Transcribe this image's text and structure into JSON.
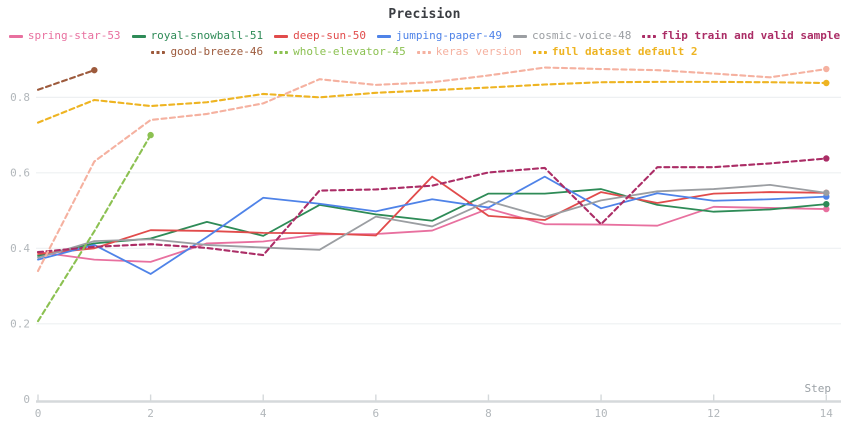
{
  "chart_data": {
    "type": "line",
    "title": "Precision",
    "xlabel": "Step",
    "xlim": [
      0,
      14
    ],
    "ylim": [
      0,
      0.92
    ],
    "xticks": [
      0,
      2,
      4,
      6,
      8,
      10,
      12,
      14
    ],
    "yticks": [
      0,
      0.2,
      0.4,
      0.6,
      0.8
    ],
    "grid": true,
    "legend_position": "top",
    "series": [
      {
        "name": "spring-star-53",
        "color": "#e8709f",
        "dash": false,
        "bold": false,
        "legend_row": 0,
        "x": [
          0,
          1,
          2,
          3,
          4,
          5,
          6,
          7,
          8,
          9,
          10,
          11,
          12,
          13,
          14
        ],
        "values": [
          0.39,
          0.37,
          0.364,
          0.413,
          0.418,
          0.437,
          0.438,
          0.447,
          0.505,
          0.464,
          0.463,
          0.46,
          0.51,
          0.507,
          0.504
        ]
      },
      {
        "name": "royal-snowball-51",
        "color": "#2e8b57",
        "dash": false,
        "bold": false,
        "legend_row": 0,
        "x": [
          0,
          1,
          2,
          3,
          4,
          5,
          6,
          7,
          8,
          9,
          10,
          11,
          12,
          13,
          14
        ],
        "values": [
          0.38,
          0.413,
          0.426,
          0.47,
          0.433,
          0.515,
          0.49,
          0.473,
          0.545,
          0.545,
          0.557,
          0.515,
          0.497,
          0.503,
          0.517
        ]
      },
      {
        "name": "deep-sun-50",
        "color": "#e14b4b",
        "dash": false,
        "bold": false,
        "legend_row": 0,
        "x": [
          0,
          1,
          2,
          3,
          4,
          5,
          6,
          7,
          8,
          9,
          10,
          11,
          12,
          13,
          14
        ],
        "values": [
          0.385,
          0.4,
          0.448,
          0.446,
          0.441,
          0.44,
          0.434,
          0.59,
          0.486,
          0.475,
          0.549,
          0.52,
          0.545,
          0.549,
          0.547
        ]
      },
      {
        "name": "jumping-paper-49",
        "color": "#4f83e8",
        "dash": false,
        "bold": false,
        "legend_row": 0,
        "x": [
          0,
          1,
          2,
          3,
          4,
          5,
          6,
          7,
          8,
          9,
          10,
          11,
          12,
          13,
          14
        ],
        "values": [
          0.37,
          0.409,
          0.332,
          0.43,
          0.534,
          0.518,
          0.498,
          0.53,
          0.508,
          0.59,
          0.506,
          0.546,
          0.526,
          0.53,
          0.537
        ]
      },
      {
        "name": "cosmic-voice-48",
        "color": "#9b9ea2",
        "dash": false,
        "bold": false,
        "legend_row": 0,
        "x": [
          0,
          1,
          2,
          3,
          4,
          5,
          6,
          7,
          8,
          9,
          10,
          11,
          12,
          13,
          14
        ],
        "values": [
          0.375,
          0.419,
          0.424,
          0.409,
          0.402,
          0.396,
          0.484,
          0.458,
          0.525,
          0.483,
          0.527,
          0.551,
          0.557,
          0.568,
          0.547
        ]
      },
      {
        "name": "flip train and valid sample",
        "color": "#ab2d66",
        "dash": true,
        "bold": true,
        "legend_row": 0,
        "x": [
          0,
          1,
          2,
          3,
          4,
          5,
          6,
          7,
          8,
          9,
          10,
          11,
          12,
          13,
          14
        ],
        "values": [
          0.39,
          0.404,
          0.411,
          0.401,
          0.382,
          0.553,
          0.556,
          0.566,
          0.601,
          0.613,
          0.464,
          0.615,
          0.615,
          0.625,
          0.638
        ]
      },
      {
        "name": "good-breeze-46",
        "color": "#9d5a3c",
        "dash": true,
        "bold": false,
        "legend_row": 1,
        "x": [
          0,
          1
        ],
        "values": [
          0.82,
          0.872
        ]
      },
      {
        "name": "whole-elevator-45",
        "color": "#8cc152",
        "dash": true,
        "bold": false,
        "legend_row": 1,
        "x": [
          0,
          1,
          2
        ],
        "values": [
          0.207,
          0.445,
          0.7
        ]
      },
      {
        "name": "keras version",
        "color": "#f5b1a0",
        "dash": true,
        "bold": false,
        "legend_row": 1,
        "x": [
          0,
          1,
          2,
          3,
          4,
          5,
          6,
          7,
          8,
          9,
          10,
          11,
          12,
          13,
          14
        ],
        "values": [
          0.34,
          0.63,
          0.74,
          0.756,
          0.784,
          0.848,
          0.833,
          0.84,
          0.858,
          0.879,
          0.875,
          0.872,
          0.863,
          0.853,
          0.875
        ]
      },
      {
        "name": "full dataset default 2",
        "color": "#eeb422",
        "dash": true,
        "bold": true,
        "legend_row": 1,
        "x": [
          0,
          1,
          2,
          3,
          4,
          5,
          6,
          7,
          8,
          9,
          10,
          11,
          12,
          13,
          14
        ],
        "values": [
          0.733,
          0.793,
          0.777,
          0.787,
          0.809,
          0.8,
          0.812,
          0.819,
          0.826,
          0.834,
          0.84,
          0.841,
          0.841,
          0.84,
          0.838
        ]
      }
    ]
  }
}
